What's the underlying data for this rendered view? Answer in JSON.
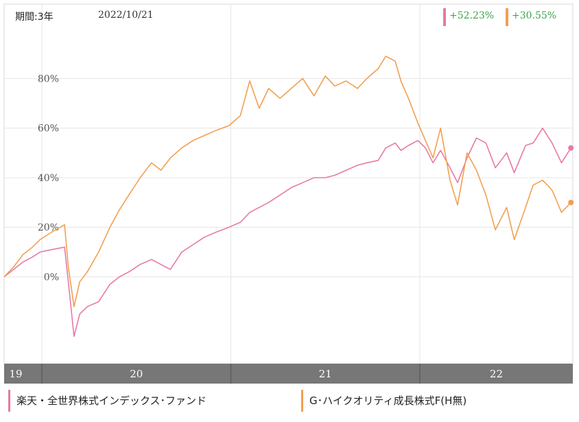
{
  "header": {
    "period_label": "期間:3年",
    "date": "2022/10/21"
  },
  "returns": [
    {
      "value": "+52.23%",
      "color": "#e878a8"
    },
    {
      "value": "+30.55%",
      "color": "#f0a050"
    }
  ],
  "legend": [
    {
      "label": "楽天・全世界株式インデックス･ファンド",
      "color": "#e878a8"
    },
    {
      "label": "G･ハイクオリティ成長株式F(H無)",
      "color": "#f0a050"
    }
  ],
  "chart_data": {
    "type": "line",
    "title": "",
    "xlabel": "",
    "ylabel": "",
    "ylim": [
      -35,
      110
    ],
    "xlim": [
      2019.8,
      2022.81
    ],
    "yticks": [
      {
        "value": 0,
        "label": "0%"
      },
      {
        "value": 20,
        "label": "20%"
      },
      {
        "value": 40,
        "label": "40%"
      },
      {
        "value": 60,
        "label": "60%"
      },
      {
        "value": 80,
        "label": "80%"
      }
    ],
    "year_bands": [
      {
        "label": "19",
        "start": 2019.8,
        "end": 2020.0
      },
      {
        "label": "20",
        "start": 2020.0,
        "end": 2021.0
      },
      {
        "label": "21",
        "start": 2021.0,
        "end": 2022.0
      },
      {
        "label": "22",
        "start": 2022.0,
        "end": 2022.81
      }
    ],
    "grid": true,
    "series": [
      {
        "name": "楽天・全世界株式インデックス･ファンド",
        "color": "#e878a8",
        "points": [
          [
            2019.8,
            0
          ],
          [
            2019.85,
            3
          ],
          [
            2019.9,
            6
          ],
          [
            2019.95,
            8
          ],
          [
            2019.99,
            10
          ],
          [
            2020.05,
            11
          ],
          [
            2020.12,
            12
          ],
          [
            2020.14,
            -2
          ],
          [
            2020.17,
            -24
          ],
          [
            2020.2,
            -15
          ],
          [
            2020.24,
            -12
          ],
          [
            2020.3,
            -10
          ],
          [
            2020.36,
            -3
          ],
          [
            2020.41,
            0
          ],
          [
            2020.46,
            2
          ],
          [
            2020.52,
            5
          ],
          [
            2020.58,
            7
          ],
          [
            2020.63,
            5
          ],
          [
            2020.68,
            3
          ],
          [
            2020.74,
            10
          ],
          [
            2020.8,
            13
          ],
          [
            2020.86,
            16
          ],
          [
            2020.92,
            18
          ],
          [
            2020.99,
            20
          ],
          [
            2021.05,
            22
          ],
          [
            2021.1,
            26
          ],
          [
            2021.15,
            28
          ],
          [
            2021.2,
            30
          ],
          [
            2021.26,
            33
          ],
          [
            2021.32,
            36
          ],
          [
            2021.38,
            38
          ],
          [
            2021.44,
            40
          ],
          [
            2021.5,
            40
          ],
          [
            2021.55,
            41
          ],
          [
            2021.61,
            43
          ],
          [
            2021.67,
            45
          ],
          [
            2021.72,
            46
          ],
          [
            2021.78,
            47
          ],
          [
            2021.82,
            52
          ],
          [
            2021.87,
            54
          ],
          [
            2021.9,
            51
          ],
          [
            2021.94,
            53
          ],
          [
            2021.99,
            55
          ],
          [
            2022.03,
            52
          ],
          [
            2022.07,
            46
          ],
          [
            2022.11,
            51
          ],
          [
            2022.16,
            44
          ],
          [
            2022.2,
            38
          ],
          [
            2022.25,
            48
          ],
          [
            2022.3,
            56
          ],
          [
            2022.35,
            54
          ],
          [
            2022.4,
            44
          ],
          [
            2022.46,
            50
          ],
          [
            2022.5,
            42
          ],
          [
            2022.56,
            53
          ],
          [
            2022.6,
            54
          ],
          [
            2022.65,
            60
          ],
          [
            2022.7,
            54
          ],
          [
            2022.75,
            46
          ],
          [
            2022.8,
            52
          ]
        ]
      },
      {
        "name": "G･ハイクオリティ成長株式F(H無)",
        "color": "#f0a050",
        "points": [
          [
            2019.8,
            0
          ],
          [
            2019.85,
            4
          ],
          [
            2019.9,
            9
          ],
          [
            2019.95,
            12
          ],
          [
            2019.99,
            15
          ],
          [
            2020.05,
            18
          ],
          [
            2020.12,
            21
          ],
          [
            2020.14,
            4
          ],
          [
            2020.17,
            -12
          ],
          [
            2020.2,
            -2
          ],
          [
            2020.24,
            2
          ],
          [
            2020.3,
            10
          ],
          [
            2020.36,
            20
          ],
          [
            2020.41,
            27
          ],
          [
            2020.46,
            33
          ],
          [
            2020.52,
            40
          ],
          [
            2020.58,
            46
          ],
          [
            2020.63,
            43
          ],
          [
            2020.68,
            48
          ],
          [
            2020.74,
            52
          ],
          [
            2020.8,
            55
          ],
          [
            2020.86,
            57
          ],
          [
            2020.92,
            59
          ],
          [
            2020.99,
            61
          ],
          [
            2021.05,
            65
          ],
          [
            2021.1,
            79
          ],
          [
            2021.15,
            68
          ],
          [
            2021.2,
            76
          ],
          [
            2021.26,
            72
          ],
          [
            2021.32,
            76
          ],
          [
            2021.38,
            80
          ],
          [
            2021.44,
            73
          ],
          [
            2021.5,
            81
          ],
          [
            2021.55,
            77
          ],
          [
            2021.61,
            79
          ],
          [
            2021.67,
            76
          ],
          [
            2021.72,
            80
          ],
          [
            2021.78,
            84
          ],
          [
            2021.82,
            89
          ],
          [
            2021.87,
            87
          ],
          [
            2021.9,
            79
          ],
          [
            2021.94,
            72
          ],
          [
            2021.99,
            62
          ],
          [
            2022.03,
            55
          ],
          [
            2022.07,
            48
          ],
          [
            2022.11,
            60
          ],
          [
            2022.16,
            39
          ],
          [
            2022.2,
            29
          ],
          [
            2022.25,
            50
          ],
          [
            2022.3,
            43
          ],
          [
            2022.35,
            33
          ],
          [
            2022.4,
            19
          ],
          [
            2022.46,
            28
          ],
          [
            2022.5,
            15
          ],
          [
            2022.56,
            28
          ],
          [
            2022.6,
            37
          ],
          [
            2022.65,
            39
          ],
          [
            2022.7,
            35
          ],
          [
            2022.75,
            26
          ],
          [
            2022.8,
            30
          ]
        ]
      }
    ]
  }
}
